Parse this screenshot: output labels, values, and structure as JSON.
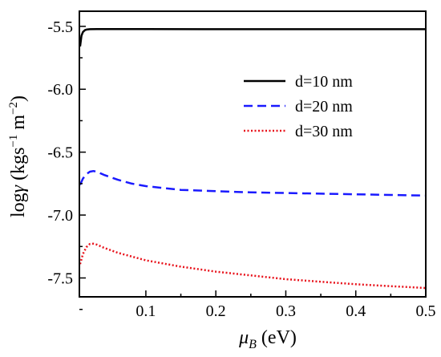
{
  "chart_data": {
    "type": "line",
    "xlabel": {
      "symbol": "μ",
      "sub": "B",
      "unit": " (eV)"
    },
    "ylabel": {
      "prefix": "log",
      "symbol": "γ",
      "open": " (kgs",
      "exp1": "−1",
      "mid": " m",
      "exp2": "−2",
      "close": ")"
    },
    "xlim": [
      0.005,
      0.5
    ],
    "ylim": [
      -7.65,
      -5.38
    ],
    "xticks": [
      0.1,
      0.2,
      0.3,
      0.4,
      0.5
    ],
    "xtick_labels": [
      "0.1",
      "0.2",
      "0.3",
      "0.4",
      "0.5"
    ],
    "yticks": [
      -5.5,
      -6.0,
      -6.5,
      -7.0,
      -7.5
    ],
    "ytick_labels": [
      "-5.5",
      "-6.0",
      "-6.5",
      "-7.0",
      "-7.5"
    ],
    "grid": false,
    "legend_position": "upper-right",
    "series": [
      {
        "name": "d=10 nm",
        "color": "#000000",
        "dash": "solid",
        "x": [
          0.006,
          0.008,
          0.01,
          0.013,
          0.016,
          0.02,
          0.03,
          0.05,
          0.1,
          0.2,
          0.3,
          0.4,
          0.5
        ],
        "y": [
          -5.66,
          -5.575,
          -5.545,
          -5.53,
          -5.525,
          -5.523,
          -5.522,
          -5.522,
          -5.522,
          -5.523,
          -5.523,
          -5.523,
          -5.523
        ]
      },
      {
        "name": "d=20 nm",
        "color": "#1a1aff",
        "dash": "dashed",
        "x": [
          0.006,
          0.01,
          0.015,
          0.02,
          0.025,
          0.03,
          0.04,
          0.06,
          0.08,
          0.1,
          0.15,
          0.2,
          0.25,
          0.3,
          0.35,
          0.4,
          0.45,
          0.5
        ],
        "y": [
          -6.76,
          -6.71,
          -6.675,
          -6.655,
          -6.65,
          -6.655,
          -6.68,
          -6.72,
          -6.75,
          -6.77,
          -6.8,
          -6.81,
          -6.82,
          -6.825,
          -6.83,
          -6.835,
          -6.84,
          -6.845
        ]
      },
      {
        "name": "d=30 nm",
        "color": "#e8121b",
        "dash": "dotted",
        "x": [
          0.006,
          0.01,
          0.015,
          0.02,
          0.025,
          0.03,
          0.04,
          0.06,
          0.08,
          0.1,
          0.15,
          0.2,
          0.25,
          0.3,
          0.35,
          0.4,
          0.45,
          0.5
        ],
        "y": [
          -7.39,
          -7.31,
          -7.255,
          -7.23,
          -7.228,
          -7.235,
          -7.26,
          -7.3,
          -7.33,
          -7.36,
          -7.41,
          -7.45,
          -7.48,
          -7.51,
          -7.53,
          -7.55,
          -7.565,
          -7.58
        ]
      }
    ]
  }
}
